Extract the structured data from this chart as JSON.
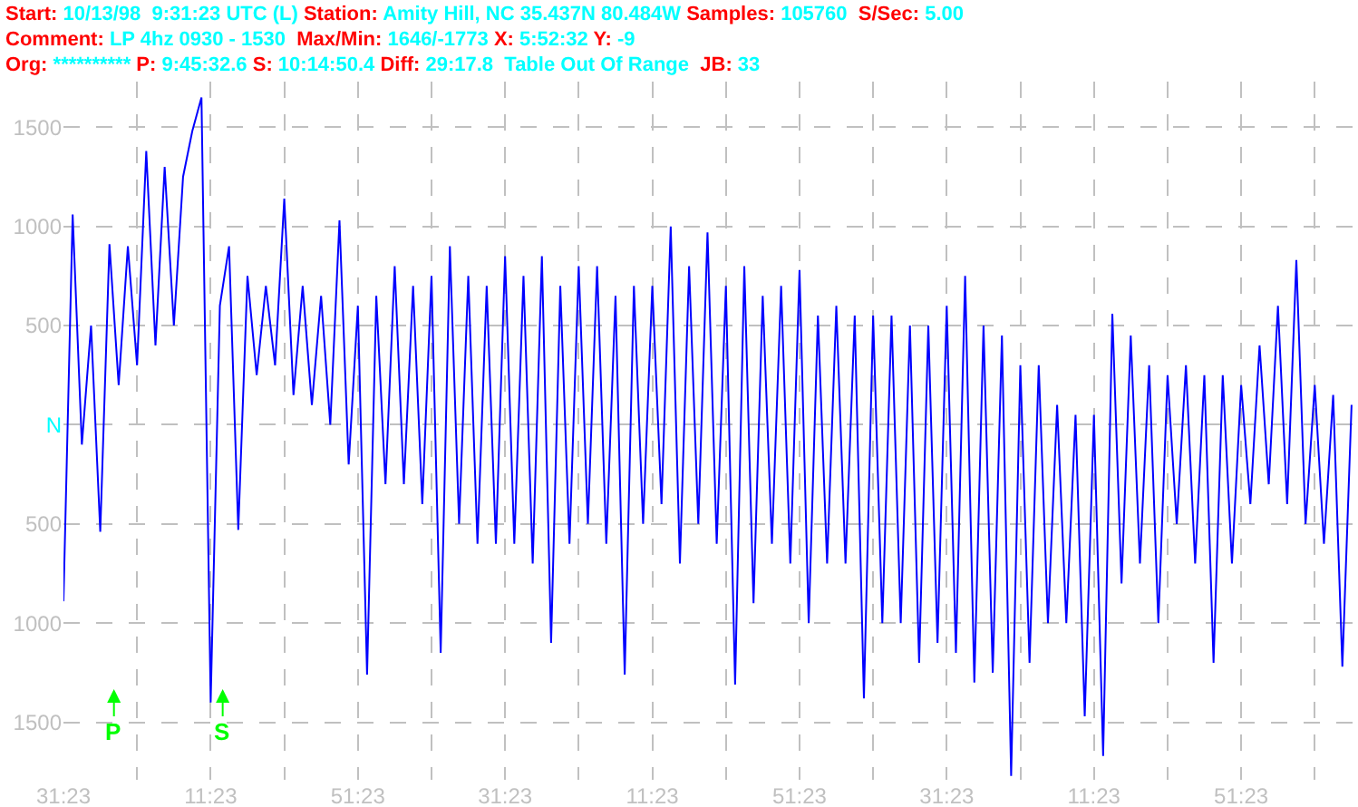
{
  "chart_data": {
    "type": "line",
    "title": "Start: 10/13/98  9:31:23 UTC (L) Station: Amity Hill, NC 35.437N 80.484W Samples: 105760  S/Sec: 5.00",
    "subtitle": "Comment: LP 4hz 0930 - 1530  Max/Min: 1646/-1773 X: 5:52:32 Y: -9",
    "annotations": [
      "Org: ********** P: 9:45:32.6 S: 10:14:50.4 Diff: 29:17.8  Table Out Of Range  JB: 33",
      "P",
      "S"
    ],
    "categories": [
      "31:23",
      null,
      null,
      null,
      null,
      null,
      null,
      null,
      null,
      null,
      null,
      null,
      null,
      null,
      null,
      null,
      "11:23",
      null,
      null,
      null,
      null,
      null,
      null,
      null,
      null,
      null,
      null,
      null,
      null,
      null,
      null,
      null,
      "51:23",
      null,
      null,
      null,
      null,
      null,
      null,
      null,
      null,
      null,
      null,
      null,
      null,
      null,
      null,
      null,
      "31:23",
      null,
      null,
      null,
      null,
      null,
      null,
      null,
      null,
      null,
      null,
      null,
      null,
      null,
      null,
      null,
      "11:23",
      null,
      null,
      null,
      null,
      null,
      null,
      null,
      null,
      null,
      null,
      null,
      null,
      null,
      null,
      null,
      "51:23",
      null,
      null,
      null,
      null,
      null,
      null,
      null,
      null,
      null,
      null,
      null,
      null,
      null,
      null,
      null,
      "31:23",
      null,
      null,
      null,
      null,
      null,
      null,
      null,
      null,
      null,
      null,
      null,
      null,
      null,
      null,
      null,
      "11:23",
      null,
      null,
      null,
      null,
      null,
      null,
      null,
      null,
      null,
      null,
      null,
      null,
      null,
      null,
      null,
      "51:23",
      null,
      null,
      null,
      null,
      null,
      null,
      null,
      null,
      null,
      null,
      null,
      null
    ],
    "series": [
      {
        "color": "#0000ff",
        "values": [
          -890,
          1060,
          -100,
          500,
          -540,
          910,
          200,
          900,
          300,
          1380,
          400,
          1300,
          500,
          1250,
          1480,
          1650,
          -1400,
          600,
          900,
          -530,
          750,
          250,
          700,
          300,
          1140,
          150,
          700,
          100,
          650,
          0,
          1030,
          -200,
          600,
          -1260,
          650,
          -300,
          800,
          -300,
          700,
          -400,
          750,
          -1150,
          900,
          -500,
          750,
          -600,
          700,
          -600,
          850,
          -600,
          750,
          -700,
          850,
          -1100,
          700,
          -600,
          800,
          -500,
          800,
          -600,
          650,
          -1260,
          700,
          -500,
          700,
          -400,
          1000,
          -700,
          800,
          -500,
          970,
          -600,
          700,
          -1310,
          800,
          -900,
          650,
          -600,
          700,
          -700,
          780,
          -1000,
          550,
          -700,
          600,
          -700,
          550,
          -1380,
          550,
          -1000,
          550,
          -1000,
          500,
          -1200,
          500,
          -1100,
          600,
          -1150,
          750,
          -1300,
          500,
          -1250,
          450,
          -1770,
          300,
          -1200,
          300,
          -1000,
          100,
          -1000,
          50,
          -1470,
          50,
          -1670,
          560,
          -800,
          450,
          -700,
          300,
          -1000,
          250,
          -500,
          300,
          -700,
          250,
          -1200,
          250,
          -700,
          200,
          -400,
          400,
          -300,
          600,
          -400,
          830,
          -500,
          200,
          -600,
          150,
          -1220,
          100
        ]
      }
    ],
    "ylim": [
      -1790,
      1730
    ],
    "yticks": [
      {
        "value": -1500,
        "label": "1500"
      },
      {
        "value": -1000,
        "label": "1000"
      },
      {
        "value": -500,
        "label": "500"
      },
      {
        "value": 0,
        "label": "N"
      },
      500,
      1000,
      1500
    ],
    "grid": true,
    "marker": "none",
    "line_style": "solid"
  }
}
